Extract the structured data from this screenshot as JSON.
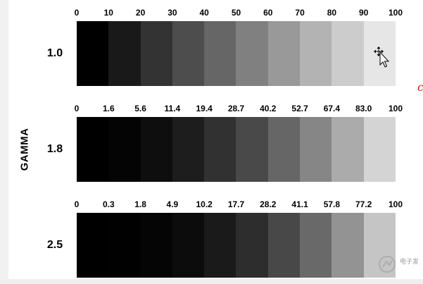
{
  "axis_title": "GAMMA",
  "rows": [
    {
      "label": "1.0",
      "ticks": [
        "0",
        "10",
        "20",
        "30",
        "40",
        "50",
        "60",
        "70",
        "80",
        "90",
        "100"
      ],
      "patch_colors": [
        "#000000",
        "#191919",
        "#333333",
        "#4d4d4d",
        "#666666",
        "#808080",
        "#999999",
        "#b3b3b3",
        "#cccccc",
        "#e6e6e6"
      ]
    },
    {
      "label": "1.8",
      "ticks": [
        "0",
        "1.6",
        "5.6",
        "11.4",
        "19.4",
        "28.7",
        "40.2",
        "52.7",
        "67.4",
        "83.0",
        "100"
      ],
      "patch_colors": [
        "#000000",
        "#040404",
        "#0e0e0e",
        "#1d1d1d",
        "#313131",
        "#494949",
        "#666666",
        "#868686",
        "#ababab",
        "#d4d4d4"
      ]
    },
    {
      "label": "2.5",
      "ticks": [
        "0",
        "0.3",
        "1.8",
        "4.9",
        "10.2",
        "17.7",
        "28.2",
        "41.1",
        "57.8",
        "77.2",
        "100"
      ],
      "patch_colors": [
        "#000000",
        "#010101",
        "#050505",
        "#0c0c0c",
        "#1a1a1a",
        "#2d2d2d",
        "#484848",
        "#696969",
        "#939393",
        "#c5c5c5"
      ]
    }
  ],
  "red_mark": "c",
  "watermark_text": "电子发"
}
